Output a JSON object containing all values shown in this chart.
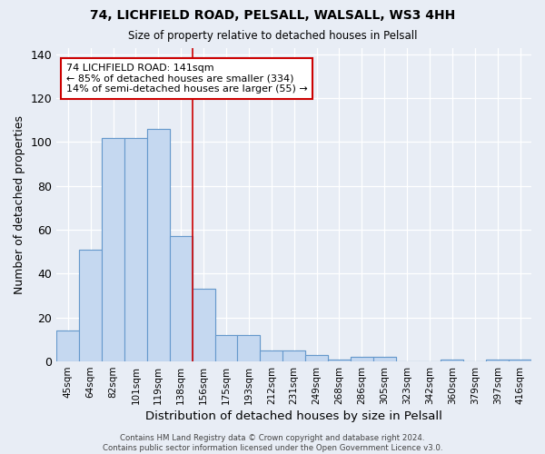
{
  "title1": "74, LICHFIELD ROAD, PELSALL, WALSALL, WS3 4HH",
  "title2": "Size of property relative to detached houses in Pelsall",
  "xlabel": "Distribution of detached houses by size in Pelsall",
  "ylabel": "Number of detached properties",
  "bin_labels": [
    "45sqm",
    "64sqm",
    "82sqm",
    "101sqm",
    "119sqm",
    "138sqm",
    "156sqm",
    "175sqm",
    "193sqm",
    "212sqm",
    "231sqm",
    "249sqm",
    "268sqm",
    "286sqm",
    "305sqm",
    "323sqm",
    "342sqm",
    "360sqm",
    "379sqm",
    "397sqm",
    "416sqm"
  ],
  "bar_heights": [
    14,
    51,
    102,
    102,
    106,
    57,
    33,
    12,
    12,
    5,
    5,
    3,
    1,
    2,
    2,
    0,
    0,
    1,
    0,
    1,
    1
  ],
  "bar_color": "#c5d8f0",
  "bar_edge_color": "#6699cc",
  "background_color": "#e8edf5",
  "grid_color": "#ffffff",
  "red_line_x": 5,
  "annotation_line1": "74 LICHFIELD ROAD: 141sqm",
  "annotation_line2": "← 85% of detached houses are smaller (334)",
  "annotation_line3": "14% of semi-detached houses are larger (55) →",
  "annotation_box_color": "#ffffff",
  "annotation_box_edge": "#cc0000",
  "footnote": "Contains HM Land Registry data © Crown copyright and database right 2024.\nContains public sector information licensed under the Open Government Licence v3.0.",
  "ylim": [
    0,
    143
  ],
  "yticks": [
    0,
    20,
    40,
    60,
    80,
    100,
    120,
    140
  ]
}
